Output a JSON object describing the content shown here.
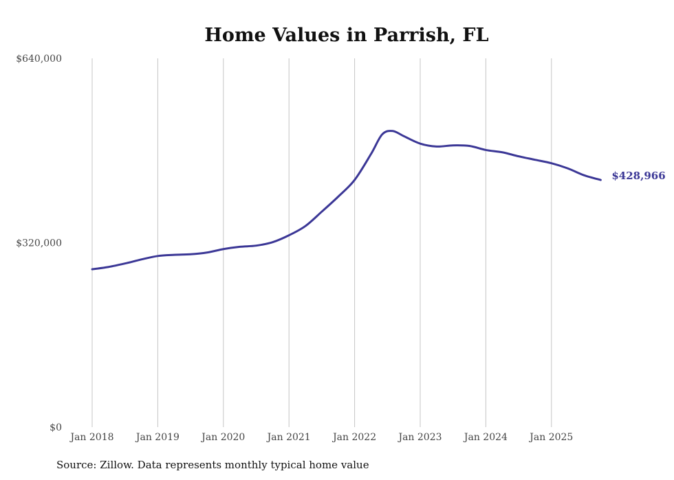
{
  "chart_data": {
    "type": "line",
    "title": "Home Values in Parrish, FL",
    "xlabel": "",
    "ylabel": "",
    "ylim": [
      0,
      640000
    ],
    "yticks": [
      {
        "value": 0,
        "label": "$0"
      },
      {
        "value": 320000,
        "label": "$320,000"
      },
      {
        "value": 640000,
        "label": "$640,000"
      }
    ],
    "xticks": [
      {
        "value": 2018,
        "label": "Jan 2018"
      },
      {
        "value": 2019,
        "label": "Jan 2019"
      },
      {
        "value": 2020,
        "label": "Jan 2020"
      },
      {
        "value": 2021,
        "label": "Jan 2021"
      },
      {
        "value": 2022,
        "label": "Jan 2022"
      },
      {
        "value": 2023,
        "label": "Jan 2023"
      },
      {
        "value": 2024,
        "label": "Jan 2024"
      },
      {
        "value": 2025,
        "label": "Jan 2025"
      }
    ],
    "xlim": [
      2018,
      2025.75
    ],
    "grid": "vertical",
    "series": [
      {
        "name": "Typical home value",
        "color": "#3b3796",
        "x": [
          2018.0,
          2018.25,
          2018.5,
          2018.75,
          2019.0,
          2019.25,
          2019.5,
          2019.75,
          2020.0,
          2020.25,
          2020.5,
          2020.75,
          2021.0,
          2021.25,
          2021.5,
          2021.75,
          2022.0,
          2022.25,
          2022.42,
          2022.58,
          2022.75,
          2023.0,
          2023.25,
          2023.5,
          2023.75,
          2024.0,
          2024.25,
          2024.5,
          2024.75,
          2025.0,
          2025.25,
          2025.5,
          2025.75
        ],
        "values": [
          274000,
          278000,
          284000,
          291000,
          297000,
          299000,
          300000,
          303000,
          309000,
          313000,
          315000,
          321000,
          333000,
          349000,
          374000,
          400000,
          429000,
          474000,
          508000,
          514000,
          505000,
          492000,
          487000,
          489000,
          488000,
          481000,
          477000,
          470000,
          464000,
          458000,
          449000,
          437000,
          428966
        ]
      }
    ],
    "end_label": "$428,966"
  },
  "source": "Source: Zillow. Data represents monthly typical home value"
}
